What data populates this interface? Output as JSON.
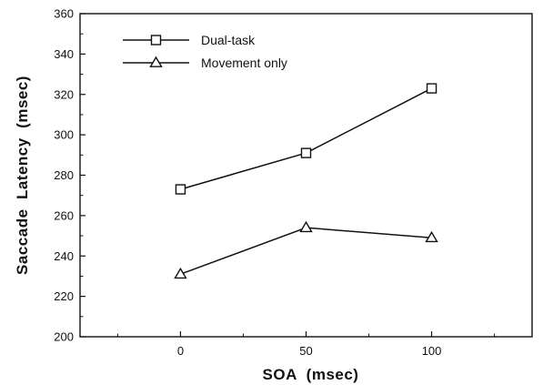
{
  "chart_data": {
    "type": "line",
    "title": "",
    "xlabel": "SOA  (msec)",
    "ylabel": "Saccade  Latency  (msec)",
    "x": [
      0,
      50,
      100
    ],
    "x_ticks": [
      "0",
      "50",
      "100"
    ],
    "xlim": [
      -40,
      140
    ],
    "ylim": [
      200,
      360
    ],
    "y_ticks": [
      200,
      220,
      240,
      260,
      280,
      300,
      320,
      340,
      360
    ],
    "grid": false,
    "legend_position": "top-left",
    "series": [
      {
        "name": "Dual-task",
        "marker": "square",
        "values": [
          273,
          291,
          323
        ]
      },
      {
        "name": "Movement only",
        "marker": "triangle",
        "values": [
          231,
          254,
          249
        ]
      }
    ]
  }
}
